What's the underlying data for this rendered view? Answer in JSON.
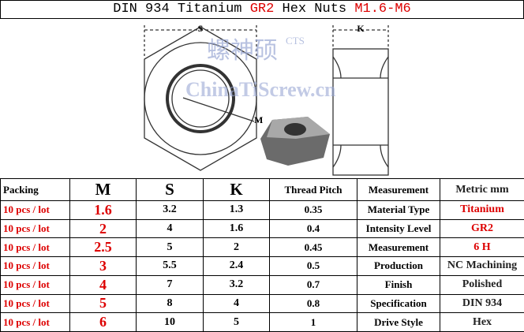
{
  "title": {
    "part1": "DIN 934 Titanium",
    "grade": "GR2",
    "part2": "Hex Nuts",
    "range": "M1.6-M6"
  },
  "drawing": {
    "s_label": "S",
    "k_label": "K",
    "m_label": "M",
    "watermark_cn": "螺神硕",
    "watermark_brand": "CTS",
    "watermark_site": "ChinaTiScrew.cn"
  },
  "table": {
    "header": [
      "Packing",
      "M",
      "S",
      "K",
      "Thread Pitch",
      "Measurement",
      "Metric  mm"
    ],
    "rows": [
      [
        "10 pcs / lot",
        "1.6",
        "3.2",
        "1.3",
        "0.35",
        "Material Type",
        "Titanium"
      ],
      [
        "10 pcs / lot",
        "2",
        "4",
        "1.6",
        "0.4",
        "Intensity Level",
        "GR2"
      ],
      [
        "10 pcs / lot",
        "2.5",
        "5",
        "2",
        "0.45",
        "Measurement",
        "6 H"
      ],
      [
        "10 pcs / lot",
        "3",
        "5.5",
        "2.4",
        "0.5",
        "Production",
        "NC Machining"
      ],
      [
        "10 pcs / lot",
        "4",
        "7",
        "3.2",
        "0.7",
        "Finish",
        "Polished"
      ],
      [
        "10 pcs / lot",
        "5",
        "8",
        "4",
        "0.8",
        "Specification",
        "DIN 934"
      ],
      [
        "10 pcs / lot",
        "6",
        "10",
        "5",
        "1",
        "Drive Style",
        "Hex"
      ]
    ]
  }
}
